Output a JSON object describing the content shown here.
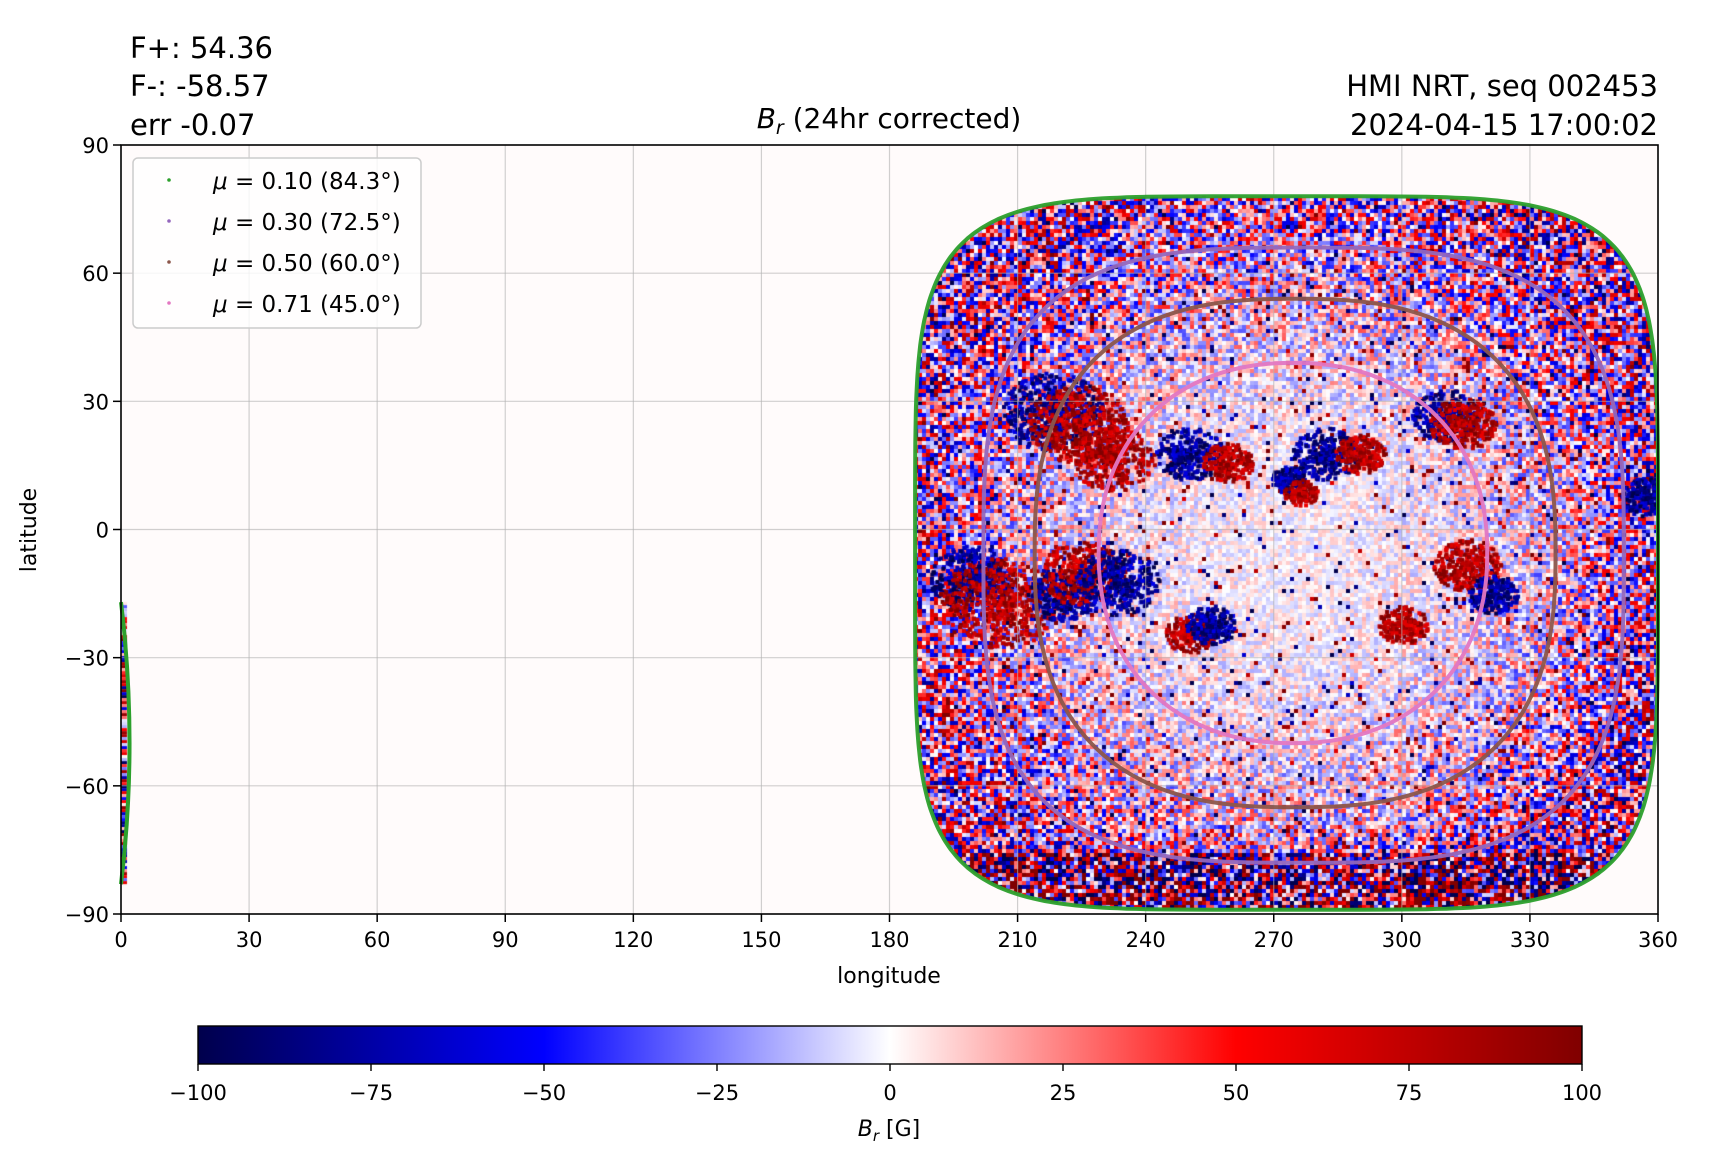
{
  "header": {
    "flux_pos": "F+: 54.36",
    "flux_neg": "F-: -58.57",
    "err": "err -0.07",
    "source": "HMI NRT, seq 002453",
    "timestamp": "2024-04-15 17:00:02"
  },
  "chart_data": {
    "type": "heatmap",
    "title": "B_r (24hr corrected)",
    "title_symbol": "B",
    "title_subscript": "r",
    "title_rest": " (24hr corrected)",
    "xlabel": "longitude",
    "ylabel": "latitude",
    "xlim": [
      0,
      360
    ],
    "ylim": [
      -90,
      90
    ],
    "xticks": [
      0,
      30,
      60,
      90,
      120,
      150,
      180,
      210,
      240,
      270,
      300,
      330,
      360
    ],
    "yticks": [
      90,
      60,
      30,
      0,
      -30,
      -60,
      -90
    ],
    "ytick_labels": [
      "90",
      "60",
      "30",
      "0",
      "−30",
      "−60",
      "−90"
    ],
    "xtick_labels": [
      "0",
      "30",
      "60",
      "90",
      "120",
      "150",
      "180",
      "210",
      "240",
      "270",
      "300",
      "330",
      "360"
    ],
    "grid": true,
    "disk_center": {
      "lon": 273,
      "lat": -6
    },
    "contours": [
      {
        "mu": 0.1,
        "angle_deg": 84.3,
        "label_mu": "0.10",
        "label_angle": "(84.3°)",
        "color": "#2ca02c",
        "lon_range": [
          186,
          360
        ],
        "lat_range": [
          -89,
          78
        ]
      },
      {
        "mu": 0.3,
        "angle_deg": 72.5,
        "label_mu": "0.30",
        "label_angle": "(72.5°)",
        "color": "#9467bd",
        "lon_range": [
          202,
          352
        ],
        "lat_range": [
          -78,
          66
        ]
      },
      {
        "mu": 0.5,
        "angle_deg": 60.0,
        "label_mu": "0.50",
        "label_angle": "(60.0°)",
        "color": "#8c564b",
        "lon_range": [
          214,
          336
        ],
        "lat_range": [
          -65,
          54
        ]
      },
      {
        "mu": 0.71,
        "angle_deg": 45.0,
        "label_mu": "0.71",
        "label_angle": "(45.0°)",
        "color": "#e377c2",
        "lon_range": [
          229,
          320
        ],
        "lat_range": [
          -50,
          39
        ]
      }
    ],
    "wrap_sliver": {
      "lon_range": [
        0,
        3
      ],
      "lat_range": [
        -83,
        -17
      ]
    },
    "active_regions": [
      {
        "lon": 218,
        "lat": 28,
        "sign": -1,
        "size": 6
      },
      {
        "lon": 224,
        "lat": 25,
        "sign": 1,
        "size": 6
      },
      {
        "lon": 232,
        "lat": 17,
        "sign": 1,
        "size": 5
      },
      {
        "lon": 250,
        "lat": 18,
        "sign": -1,
        "size": 4
      },
      {
        "lon": 259,
        "lat": 16,
        "sign": 1,
        "size": 3
      },
      {
        "lon": 282,
        "lat": 18,
        "sign": -1,
        "size": 4
      },
      {
        "lon": 290,
        "lat": 18,
        "sign": 1,
        "size": 3
      },
      {
        "lon": 273,
        "lat": 12,
        "sign": -1,
        "size": 2
      },
      {
        "lon": 276,
        "lat": 9,
        "sign": 1,
        "size": 2
      },
      {
        "lon": 310,
        "lat": 27,
        "sign": -1,
        "size": 4
      },
      {
        "lon": 314,
        "lat": 25,
        "sign": 1,
        "size": 4
      },
      {
        "lon": 199,
        "lat": -11,
        "sign": -1,
        "size": 5
      },
      {
        "lon": 205,
        "lat": -17,
        "sign": 1,
        "size": 7
      },
      {
        "lon": 220,
        "lat": -15,
        "sign": -1,
        "size": 4
      },
      {
        "lon": 225,
        "lat": -10,
        "sign": 1,
        "size": 5
      },
      {
        "lon": 233,
        "lat": -12,
        "sign": -1,
        "size": 5
      },
      {
        "lon": 250,
        "lat": -24,
        "sign": 1,
        "size": 3
      },
      {
        "lon": 255,
        "lat": -22,
        "sign": -1,
        "size": 3
      },
      {
        "lon": 315,
        "lat": -8,
        "sign": 1,
        "size": 4
      },
      {
        "lon": 321,
        "lat": -15,
        "sign": -1,
        "size": 3
      },
      {
        "lon": 300,
        "lat": -22,
        "sign": 1,
        "size": 3
      },
      {
        "lon": 357,
        "lat": 8,
        "sign": -1,
        "size": 3
      }
    ],
    "colorbar": {
      "cmap": "seismic",
      "vmin": -100,
      "vmax": 100,
      "ticks": [
        -100,
        -75,
        -50,
        -25,
        0,
        25,
        50,
        75,
        100
      ],
      "tick_labels": [
        "−100",
        "−75",
        "−50",
        "−25",
        "0",
        "25",
        "50",
        "75",
        "100"
      ],
      "label_symbol": "B",
      "label_subscript": "r",
      "label_unit": " [G]",
      "colors": [
        "#00004c",
        "#0000ff",
        "#ffffff",
        "#ff0000",
        "#800000"
      ]
    },
    "legend": {
      "location": "upper-left",
      "mu_symbol": "μ",
      "equals": "="
    }
  }
}
